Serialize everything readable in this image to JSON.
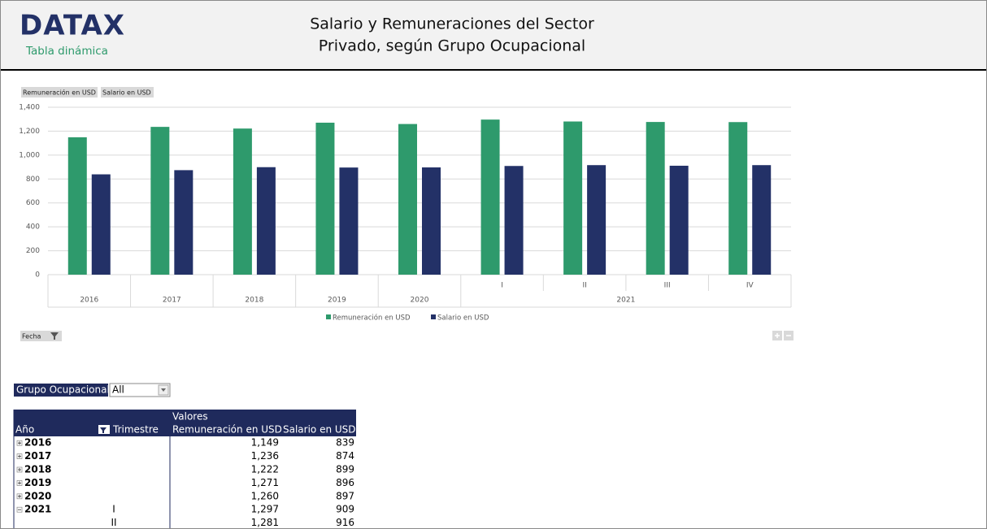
{
  "header": {
    "logo": "DATAX",
    "subtitle": "Tabla dinámica",
    "title_lines": [
      "Salario y Remuneraciones del Sector",
      "Privado, según Grupo Ocupacional"
    ]
  },
  "chart_data": {
    "type": "bar",
    "x_levels": {
      "quarter": [
        null,
        null,
        null,
        null,
        null,
        "I",
        "II",
        "III",
        "IV"
      ],
      "year": [
        "2016",
        "2017",
        "2018",
        "2019",
        "2020",
        "2021",
        null,
        null,
        null
      ]
    },
    "series": [
      {
        "name": "Remuneración en USD",
        "color": "#2e9a6c",
        "values": [
          1149,
          1236,
          1222,
          1271,
          1260,
          1297,
          1281,
          1277,
          1276
        ]
      },
      {
        "name": "Salario en USD",
        "color": "#233167",
        "values": [
          839,
          874,
          899,
          896,
          897,
          909,
          916,
          911,
          916
        ]
      }
    ],
    "ylim": [
      0,
      1400
    ],
    "yticks": [
      0,
      200,
      400,
      600,
      800,
      {
        "value": 1000,
        "label": "1,000"
      },
      {
        "value": 1200,
        "label": "1,200"
      },
      {
        "value": 1400,
        "label": "1,400"
      }
    ],
    "grid": true,
    "legend": "bottom",
    "filter_button": "Fecha"
  },
  "table": {
    "filter_label": "Grupo Ocupacional",
    "filter_value": "All",
    "values_caption": "Valores",
    "columns": [
      "Año",
      "Trimestre",
      "Remuneración en USD",
      "Salario en USD"
    ],
    "rows": [
      [
        "2016",
        null,
        "1,149",
        "839"
      ],
      [
        "2017",
        null,
        "1,236",
        "874"
      ],
      [
        "2018",
        null,
        "1,222",
        "899"
      ],
      [
        "2019",
        null,
        "1,271",
        "896"
      ],
      [
        "2020",
        null,
        "1,260",
        "897"
      ],
      [
        "2021",
        "I",
        "1,297",
        "909"
      ],
      [
        null,
        "II",
        "1,281",
        "916"
      ]
    ]
  }
}
